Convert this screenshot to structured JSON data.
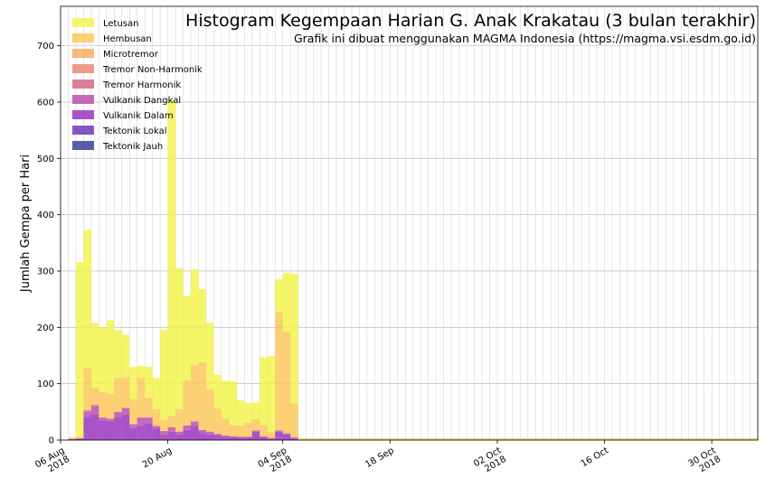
{
  "chart_data": {
    "type": "bar",
    "stacked": true,
    "title": "Histogram Kegempaan Harian G. Anak Krakatau (3 bulan terakhir)",
    "subtitle": "Grafik ini dibuat menggunakan MAGMA Indonesia (https://magma.vsi.esdm.go.id)",
    "xlabel": "",
    "ylabel": "Jumlah Gempa per Hari",
    "ylim": [
      0,
      770
    ],
    "yticks": [
      0,
      100,
      200,
      300,
      400,
      500,
      600,
      700
    ],
    "grid": true,
    "legend_position": "top-left",
    "x_start": "2018-08-06",
    "x_end": "2018-11-04",
    "x_tick_labels": [
      {
        "date": "2018-08-06",
        "lines": [
          "06 Aug",
          "2018"
        ]
      },
      {
        "date": "2018-08-20",
        "lines": [
          "20 Aug"
        ]
      },
      {
        "date": "2018-09-04",
        "lines": [
          "04 Sep",
          "2018"
        ]
      },
      {
        "date": "2018-09-18",
        "lines": [
          "18 Sep"
        ]
      },
      {
        "date": "2018-10-02",
        "lines": [
          "02 Oct",
          "2018"
        ]
      },
      {
        "date": "2018-10-16",
        "lines": [
          "16 Oct"
        ]
      },
      {
        "date": "2018-10-30",
        "lines": [
          "30 Oct",
          "2018"
        ]
      }
    ],
    "days": [
      "2018-08-07",
      "2018-08-08",
      "2018-08-09",
      "2018-08-10",
      "2018-08-11",
      "2018-08-12",
      "2018-08-13",
      "2018-08-14",
      "2018-08-15",
      "2018-08-16",
      "2018-08-17",
      "2018-08-18",
      "2018-08-19",
      "2018-08-20",
      "2018-08-21",
      "2018-08-22",
      "2018-08-23",
      "2018-08-24",
      "2018-08-25",
      "2018-08-26",
      "2018-08-27",
      "2018-08-28",
      "2018-08-29",
      "2018-08-30",
      "2018-08-31",
      "2018-09-01",
      "2018-09-02",
      "2018-09-03",
      "2018-09-04",
      "2018-09-05",
      "2018-09-06",
      "2018-09-07",
      "2018-09-08",
      "2018-09-09",
      "2018-09-10",
      "2018-09-11",
      "2018-09-12",
      "2018-09-13",
      "2018-09-14",
      "2018-09-15",
      "2018-09-16",
      "2018-09-17",
      "2018-09-18",
      "2018-09-19",
      "2018-09-20",
      "2018-09-21",
      "2018-09-22",
      "2018-09-23",
      "2018-09-24",
      "2018-09-25",
      "2018-09-26",
      "2018-09-27",
      "2018-09-28",
      "2018-09-29",
      "2018-09-30",
      "2018-10-01",
      "2018-10-02",
      "2018-10-03",
      "2018-10-04",
      "2018-10-05",
      "2018-10-06",
      "2018-10-07",
      "2018-10-08",
      "2018-10-09",
      "2018-10-10",
      "2018-10-11",
      "2018-10-12",
      "2018-10-13",
      "2018-10-14",
      "2018-10-15",
      "2018-10-16",
      "2018-10-17",
      "2018-10-18",
      "2018-10-19",
      "2018-10-20",
      "2018-10-21",
      "2018-10-22",
      "2018-10-23",
      "2018-10-24",
      "2018-10-25",
      "2018-10-26",
      "2018-10-27",
      "2018-10-28",
      "2018-10-29",
      "2018-10-30",
      "2018-10-31",
      "2018-11-01",
      "2018-11-02",
      "2018-11-03",
      "2018-11-04"
    ],
    "series": [
      {
        "name": "Tektonik Jauh",
        "color": "#3a3f9c",
        "values": [
          0,
          0,
          0,
          0,
          0,
          0,
          0,
          0,
          0,
          0,
          0,
          0,
          0,
          0,
          0,
          0,
          0,
          0,
          0,
          0,
          0,
          0,
          0,
          0,
          0,
          0,
          0,
          0,
          0,
          0,
          0,
          0,
          0,
          0,
          0,
          0,
          0,
          0,
          0,
          0,
          0,
          0,
          0,
          0,
          0,
          0,
          0,
          0,
          0,
          0,
          0,
          0,
          0,
          0,
          0,
          0,
          0,
          0,
          0,
          0,
          0,
          0,
          0,
          0,
          0,
          0,
          0,
          0,
          0,
          0,
          0,
          0,
          0,
          0,
          0,
          0,
          0,
          0,
          0,
          0,
          0,
          0,
          0,
          0,
          0,
          0,
          0,
          0,
          0,
          0
        ]
      },
      {
        "name": "Tektonik Lokal",
        "color": "#6f39b9",
        "values": [
          0,
          0,
          0,
          0,
          0,
          0,
          0,
          0,
          0,
          0,
          0,
          0,
          0,
          0,
          0,
          0,
          0,
          0,
          0,
          0,
          0,
          0,
          0,
          0,
          0,
          0,
          0,
          0,
          0,
          0,
          0,
          0,
          0,
          0,
          0,
          0,
          0,
          0,
          0,
          0,
          0,
          0,
          0,
          0,
          0,
          0,
          0,
          0,
          0,
          0,
          0,
          0,
          0,
          0,
          0,
          0,
          0,
          0,
          0,
          0,
          0,
          0,
          0,
          0,
          0,
          0,
          0,
          0,
          0,
          0,
          0,
          0,
          0,
          0,
          0,
          0,
          0,
          0,
          0,
          0,
          0,
          0,
          0,
          0,
          0,
          0,
          0,
          0,
          0,
          0
        ]
      },
      {
        "name": "Vulkanik Dalam",
        "color": "#9a35bf",
        "values": [
          2,
          3,
          40,
          45,
          35,
          33,
          40,
          45,
          22,
          25,
          30,
          20,
          10,
          15,
          10,
          18,
          25,
          12,
          10,
          8,
          6,
          5,
          4,
          4,
          15,
          5,
          2,
          15,
          10,
          3,
          0,
          0,
          0,
          0,
          0,
          0,
          0,
          0,
          0,
          0,
          0,
          0,
          0,
          0,
          0,
          0,
          0,
          0,
          0,
          0,
          0,
          0,
          0,
          0,
          0,
          0,
          0,
          0,
          0,
          0,
          0,
          0,
          0,
          0,
          0,
          0,
          0,
          0,
          0,
          0,
          0,
          0,
          0,
          0,
          0,
          0,
          0,
          0,
          0,
          0,
          0,
          0,
          0,
          0,
          0,
          0,
          0,
          0,
          0,
          0
        ]
      },
      {
        "name": "Vulkanik Dangkal",
        "color": "#bd4fae",
        "values": [
          0,
          0,
          10,
          15,
          5,
          5,
          10,
          12,
          6,
          15,
          10,
          5,
          6,
          8,
          5,
          8,
          8,
          6,
          5,
          3,
          2,
          2,
          2,
          2,
          2,
          2,
          2,
          2,
          2,
          2,
          0,
          0,
          0,
          0,
          0,
          0,
          0,
          0,
          0,
          0,
          0,
          0,
          0,
          0,
          0,
          0,
          0,
          0,
          0,
          0,
          0,
          0,
          0,
          0,
          0,
          0,
          0,
          0,
          0,
          0,
          0,
          0,
          0,
          0,
          0,
          0,
          0,
          0,
          0,
          0,
          0,
          0,
          0,
          0,
          0,
          0,
          0,
          0,
          0,
          0,
          0,
          0,
          0,
          0,
          0,
          0,
          0,
          0,
          0,
          0
        ]
      },
      {
        "name": "Tremor Harmonik",
        "color": "#d36888",
        "values": [
          0,
          0,
          3,
          3,
          0,
          0,
          0,
          0,
          0,
          0,
          0,
          0,
          0,
          0,
          0,
          0,
          0,
          0,
          0,
          0,
          0,
          0,
          0,
          0,
          0,
          0,
          0,
          0,
          0,
          0,
          0,
          0,
          0,
          0,
          0,
          0,
          0,
          0,
          0,
          0,
          0,
          0,
          0,
          0,
          0,
          0,
          0,
          0,
          0,
          0,
          0,
          0,
          0,
          0,
          0,
          0,
          0,
          0,
          0,
          0,
          0,
          0,
          0,
          0,
          0,
          0,
          0,
          0,
          0,
          0,
          0,
          0,
          0,
          0,
          0,
          0,
          0,
          0,
          0,
          0,
          0,
          0,
          0,
          0,
          0,
          0,
          0,
          0,
          0,
          0
        ]
      },
      {
        "name": "Tremor Non-Harmonik",
        "color": "#ec8a74",
        "values": [
          0,
          0,
          0,
          0,
          0,
          0,
          0,
          0,
          0,
          0,
          0,
          0,
          0,
          0,
          0,
          0,
          0,
          0,
          0,
          0,
          0,
          0,
          0,
          0,
          0,
          0,
          0,
          0,
          0,
          0,
          0,
          0,
          0,
          0,
          0,
          0,
          0,
          0,
          0,
          0,
          0,
          0,
          0,
          0,
          0,
          0,
          0,
          0,
          0,
          0,
          0,
          0,
          0,
          0,
          0,
          0,
          0,
          0,
          0,
          0,
          0,
          0,
          0,
          0,
          0,
          0,
          0,
          0,
          0,
          0,
          0,
          0,
          0,
          0,
          0,
          0,
          0,
          0,
          0,
          0,
          0,
          0,
          0,
          0,
          0,
          0,
          0,
          0,
          0,
          0
        ]
      },
      {
        "name": "Microtremor",
        "color": "#f8ad61",
        "values": [
          0,
          0,
          0,
          0,
          0,
          0,
          0,
          0,
          0,
          0,
          0,
          0,
          0,
          0,
          0,
          0,
          0,
          0,
          0,
          0,
          0,
          0,
          0,
          0,
          0,
          0,
          0,
          0,
          0,
          0,
          0,
          0,
          0,
          0,
          0,
          0,
          0,
          0,
          0,
          0,
          0,
          0,
          0,
          0,
          0,
          0,
          0,
          0,
          0,
          0,
          0,
          0,
          0,
          0,
          0,
          0,
          0,
          0,
          0,
          0,
          0,
          0,
          0,
          0,
          0,
          0,
          0,
          0,
          0,
          0,
          0,
          0,
          0,
          0,
          0,
          0,
          0,
          0,
          0,
          0,
          0,
          0,
          0,
          0,
          0,
          0,
          0,
          0,
          0,
          0
        ]
      },
      {
        "name": "Hembusan",
        "color": "#fcc85a",
        "values": [
          3,
          3,
          75,
          30,
          45,
          45,
          60,
          55,
          45,
          70,
          35,
          30,
          20,
          20,
          40,
          80,
          100,
          120,
          75,
          45,
          30,
          20,
          20,
          25,
          20,
          20,
          10,
          210,
          180,
          60,
          3,
          3,
          3,
          3,
          3,
          3,
          3,
          3,
          3,
          3,
          3,
          3,
          3,
          3,
          3,
          3,
          3,
          3,
          3,
          3,
          3,
          3,
          3,
          3,
          3,
          3,
          3,
          3,
          3,
          3,
          3,
          3,
          3,
          3,
          3,
          3,
          3,
          3,
          3,
          3,
          3,
          3,
          3,
          3,
          3,
          3,
          3,
          3,
          3,
          3,
          3,
          3,
          3,
          3,
          3,
          3,
          3,
          3,
          3,
          3
        ]
      },
      {
        "name": "Letusan",
        "color": "#f2f34c",
        "values": [
          0,
          310,
          245,
          115,
          115,
          130,
          85,
          75,
          57,
          22,
          55,
          55,
          160,
          560,
          250,
          150,
          170,
          130,
          118,
          60,
          67,
          77,
          45,
          35,
          30,
          120,
          135,
          58,
          105,
          230,
          0,
          0,
          0,
          0,
          0,
          0,
          0,
          0,
          0,
          0,
          0,
          0,
          0,
          0,
          0,
          0,
          0,
          0,
          0,
          0,
          0,
          0,
          0,
          0,
          0,
          0,
          0,
          0,
          0,
          0,
          0,
          0,
          0,
          0,
          0,
          0,
          0,
          0,
          0,
          0,
          0,
          0,
          0,
          0,
          0,
          0,
          0,
          0,
          0,
          0,
          0,
          0,
          0,
          0,
          0,
          0,
          0,
          0,
          0,
          0
        ]
      }
    ],
    "totals_note": ""
  }
}
